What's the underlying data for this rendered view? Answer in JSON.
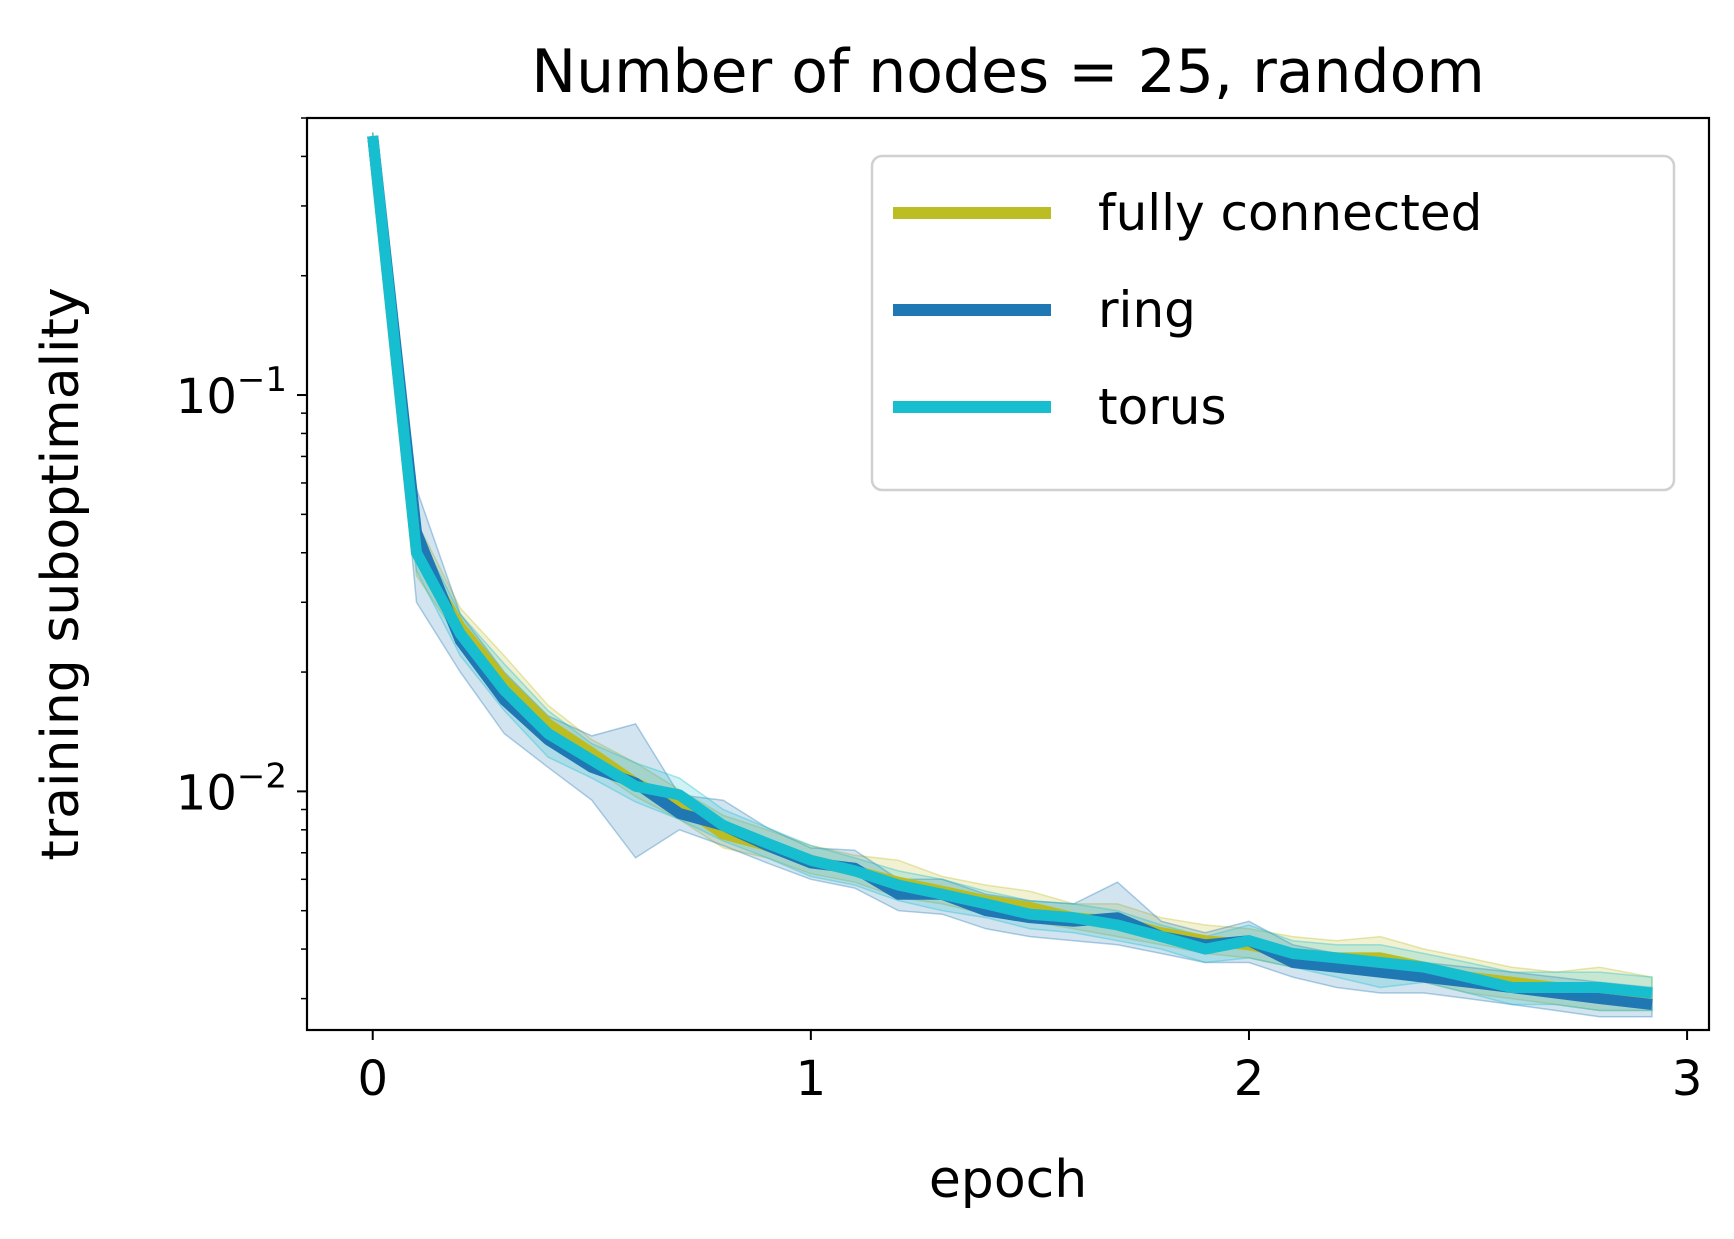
{
  "chart_data": {
    "type": "line",
    "title": "Number of nodes = 25, random",
    "xlabel": "epoch",
    "ylabel": "training suboptimality",
    "xlim": [
      -0.15,
      3.05
    ],
    "ylim": [
      0.0025,
      0.5
    ],
    "yscale": "log",
    "x_ticks": [
      0,
      1,
      2,
      3
    ],
    "x_tick_labels": [
      "0",
      "1",
      "2",
      "3"
    ],
    "y_ticks": [
      0.01,
      0.1
    ],
    "y_tick_labels": [
      {
        "base": "10",
        "exp": "−2"
      },
      {
        "base": "10",
        "exp": "−1"
      }
    ],
    "legend_position": "top-right",
    "grid": false,
    "x": [
      0,
      0.1,
      0.2,
      0.3,
      0.4,
      0.5,
      0.6,
      0.7,
      0.8,
      0.9,
      1.0,
      1.1,
      1.2,
      1.3,
      1.4,
      1.5,
      1.6,
      1.7,
      1.8,
      1.9,
      2.0,
      2.1,
      2.2,
      2.3,
      2.4,
      2.5,
      2.6,
      2.7,
      2.8,
      2.92
    ],
    "series": [
      {
        "name": "fully connected",
        "color": "#bcbd22",
        "values": [
          0.45,
          0.04,
          0.026,
          0.019,
          0.0148,
          0.0125,
          0.0105,
          0.0093,
          0.0078,
          0.0073,
          0.0067,
          0.0063,
          0.0059,
          0.0056,
          0.0053,
          0.0051,
          0.0048,
          0.0047,
          0.0044,
          0.0042,
          0.0041,
          0.0039,
          0.0038,
          0.0038,
          0.0036,
          0.0034,
          0.0033,
          0.0032,
          0.0031,
          0.0031
        ],
        "lower": [
          0.44,
          0.035,
          0.024,
          0.017,
          0.0135,
          0.0115,
          0.0097,
          0.0085,
          0.0072,
          0.0068,
          0.0062,
          0.0059,
          0.0054,
          0.0052,
          0.0049,
          0.0047,
          0.0045,
          0.0043,
          0.0041,
          0.0039,
          0.0038,
          0.0036,
          0.0035,
          0.0034,
          0.0033,
          0.0031,
          0.003,
          0.0029,
          0.0028,
          0.0028
        ],
        "upper": [
          0.46,
          0.048,
          0.029,
          0.022,
          0.0165,
          0.0135,
          0.0118,
          0.0101,
          0.0087,
          0.008,
          0.0073,
          0.0069,
          0.0067,
          0.0061,
          0.0058,
          0.0056,
          0.0052,
          0.0052,
          0.0048,
          0.0046,
          0.0045,
          0.0043,
          0.0042,
          0.0043,
          0.004,
          0.0038,
          0.0036,
          0.0035,
          0.0036,
          0.0034
        ]
      },
      {
        "name": "ring",
        "color": "#1f77b4",
        "values": [
          0.45,
          0.045,
          0.024,
          0.017,
          0.0135,
          0.0115,
          0.0105,
          0.0088,
          0.0082,
          0.0073,
          0.0066,
          0.0064,
          0.0055,
          0.0055,
          0.005,
          0.0048,
          0.0047,
          0.0048,
          0.0043,
          0.0041,
          0.0042,
          0.0037,
          0.0036,
          0.0035,
          0.0034,
          0.0033,
          0.0032,
          0.0031,
          0.003,
          0.0029
        ],
        "lower": [
          0.44,
          0.03,
          0.02,
          0.014,
          0.0115,
          0.0095,
          0.0068,
          0.008,
          0.0073,
          0.0066,
          0.006,
          0.0057,
          0.005,
          0.0049,
          0.0045,
          0.0043,
          0.0042,
          0.0041,
          0.0039,
          0.0037,
          0.0037,
          0.0034,
          0.0032,
          0.0031,
          0.0031,
          0.003,
          0.0029,
          0.0028,
          0.0027,
          0.0027
        ],
        "upper": [
          0.46,
          0.058,
          0.028,
          0.02,
          0.0155,
          0.0138,
          0.0148,
          0.0098,
          0.0095,
          0.0081,
          0.0072,
          0.0071,
          0.006,
          0.006,
          0.0055,
          0.0053,
          0.0052,
          0.0059,
          0.0047,
          0.0044,
          0.0047,
          0.0041,
          0.0039,
          0.0039,
          0.0037,
          0.0036,
          0.0035,
          0.0034,
          0.0033,
          0.0032
        ]
      },
      {
        "name": "torus",
        "color": "#17becf",
        "values": [
          0.45,
          0.04,
          0.025,
          0.018,
          0.014,
          0.012,
          0.0103,
          0.0098,
          0.0082,
          0.0074,
          0.0067,
          0.0063,
          0.0058,
          0.0055,
          0.0052,
          0.0049,
          0.0048,
          0.0046,
          0.0043,
          0.004,
          0.0042,
          0.0039,
          0.0038,
          0.0037,
          0.0036,
          0.0034,
          0.0032,
          0.0032,
          0.0032,
          0.0031
        ],
        "lower": [
          0.44,
          0.036,
          0.022,
          0.016,
          0.0122,
          0.0108,
          0.0094,
          0.0085,
          0.0075,
          0.0068,
          0.0061,
          0.0058,
          0.0053,
          0.005,
          0.0048,
          0.0045,
          0.0044,
          0.0042,
          0.004,
          0.0037,
          0.0038,
          0.0036,
          0.0034,
          0.0032,
          0.0033,
          0.0031,
          0.0029,
          0.0029,
          0.0028,
          0.0028
        ],
        "upper": [
          0.46,
          0.046,
          0.028,
          0.021,
          0.016,
          0.0132,
          0.0118,
          0.0108,
          0.009,
          0.0081,
          0.0073,
          0.0068,
          0.0063,
          0.006,
          0.0056,
          0.0053,
          0.0052,
          0.005,
          0.0046,
          0.0043,
          0.0046,
          0.0042,
          0.0041,
          0.0041,
          0.0039,
          0.0037,
          0.0035,
          0.0035,
          0.0035,
          0.0034
        ]
      }
    ]
  }
}
